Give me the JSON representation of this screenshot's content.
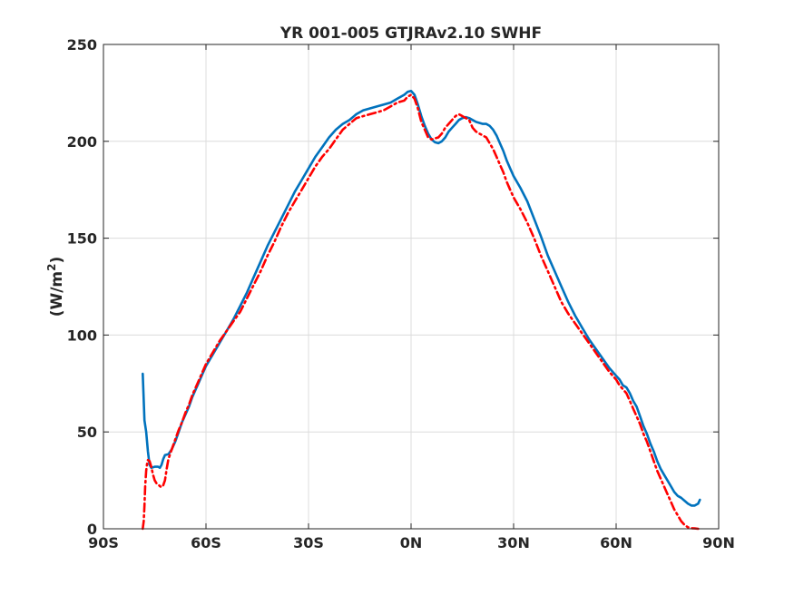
{
  "chart_data": {
    "type": "line",
    "title": "YR 001-005 GTJRAv2.10     SWHF",
    "xlabel": "",
    "ylabel_main": "(W/m",
    "ylabel_sup": "2",
    "ylabel_close": ")",
    "xlim": [
      -90,
      90
    ],
    "ylim": [
      0,
      250
    ],
    "grid": true,
    "x_ticks": [
      {
        "value": -90,
        "label": "90S"
      },
      {
        "value": -60,
        "label": "60S"
      },
      {
        "value": -30,
        "label": "30S"
      },
      {
        "value": 0,
        "label": "0N"
      },
      {
        "value": 30,
        "label": "30N"
      },
      {
        "value": 60,
        "label": "60N"
      },
      {
        "value": 90,
        "label": "90N"
      }
    ],
    "y_ticks": [
      {
        "value": 0,
        "label": "0"
      },
      {
        "value": 50,
        "label": "50"
      },
      {
        "value": 100,
        "label": "100"
      },
      {
        "value": 150,
        "label": "150"
      },
      {
        "value": 200,
        "label": "200"
      },
      {
        "value": 250,
        "label": "250"
      }
    ],
    "series": [
      {
        "color": "#0072bd",
        "dash": "solid",
        "points": [
          [
            -78.5,
            80
          ],
          [
            -78.3,
            70
          ],
          [
            -78,
            56
          ],
          [
            -77.5,
            50
          ],
          [
            -77,
            40
          ],
          [
            -76.5,
            33
          ],
          [
            -76,
            31.5
          ],
          [
            -75,
            32
          ],
          [
            -74,
            32
          ],
          [
            -73.5,
            31.5
          ],
          [
            -73,
            33
          ],
          [
            -72.5,
            36
          ],
          [
            -72,
            38
          ],
          [
            -71,
            38.5
          ],
          [
            -70,
            41
          ],
          [
            -69,
            45
          ],
          [
            -68,
            50
          ],
          [
            -67,
            55
          ],
          [
            -66,
            59
          ],
          [
            -65,
            63
          ],
          [
            -64,
            68
          ],
          [
            -63,
            72
          ],
          [
            -62,
            76
          ],
          [
            -61,
            80
          ],
          [
            -60,
            84
          ],
          [
            -58,
            90
          ],
          [
            -56,
            96
          ],
          [
            -54,
            102
          ],
          [
            -52,
            108
          ],
          [
            -50,
            115
          ],
          [
            -48,
            122
          ],
          [
            -46,
            130
          ],
          [
            -44,
            138
          ],
          [
            -42,
            146
          ],
          [
            -40,
            153
          ],
          [
            -38,
            160
          ],
          [
            -36,
            167
          ],
          [
            -34,
            174
          ],
          [
            -32,
            180
          ],
          [
            -30,
            186
          ],
          [
            -28,
            192
          ],
          [
            -26,
            197
          ],
          [
            -24,
            202
          ],
          [
            -22,
            206
          ],
          [
            -20,
            209
          ],
          [
            -18,
            211
          ],
          [
            -16,
            214
          ],
          [
            -14,
            216
          ],
          [
            -12,
            217
          ],
          [
            -10,
            218
          ],
          [
            -8,
            219
          ],
          [
            -6,
            220
          ],
          [
            -4,
            222
          ],
          [
            -2,
            224
          ],
          [
            -1,
            225.5
          ],
          [
            0,
            226
          ],
          [
            1,
            224
          ],
          [
            2,
            219
          ],
          [
            3,
            213
          ],
          [
            4,
            208
          ],
          [
            5,
            204
          ],
          [
            6,
            201
          ],
          [
            7,
            199.5
          ],
          [
            8,
            199
          ],
          [
            9,
            200
          ],
          [
            10,
            202
          ],
          [
            11,
            205
          ],
          [
            12,
            207
          ],
          [
            13,
            209
          ],
          [
            14,
            211
          ],
          [
            15,
            212
          ],
          [
            16,
            212.5
          ],
          [
            17,
            212
          ],
          [
            18,
            211
          ],
          [
            19,
            210
          ],
          [
            20,
            209.5
          ],
          [
            21,
            209
          ],
          [
            22,
            209
          ],
          [
            23,
            208
          ],
          [
            24,
            206
          ],
          [
            25,
            203
          ],
          [
            26,
            199
          ],
          [
            27,
            195
          ],
          [
            28,
            190
          ],
          [
            29,
            186
          ],
          [
            30,
            182
          ],
          [
            32,
            176
          ],
          [
            34,
            169
          ],
          [
            36,
            160
          ],
          [
            38,
            151
          ],
          [
            40,
            141
          ],
          [
            42,
            133
          ],
          [
            44,
            125
          ],
          [
            46,
            117
          ],
          [
            48,
            110
          ],
          [
            50,
            104
          ],
          [
            52,
            98
          ],
          [
            54,
            93
          ],
          [
            56,
            88
          ],
          [
            58,
            83
          ],
          [
            60,
            79
          ],
          [
            61,
            77
          ],
          [
            62,
            74
          ],
          [
            63,
            73
          ],
          [
            64,
            70
          ],
          [
            65,
            66
          ],
          [
            66,
            63
          ],
          [
            67,
            58
          ],
          [
            68,
            53
          ],
          [
            69,
            49
          ],
          [
            70,
            44
          ],
          [
            71,
            40
          ],
          [
            72,
            35
          ],
          [
            73,
            31
          ],
          [
            74,
            28
          ],
          [
            75,
            25
          ],
          [
            76,
            22
          ],
          [
            77,
            19
          ],
          [
            78,
            17
          ],
          [
            79,
            16
          ],
          [
            80,
            14.5
          ],
          [
            81,
            13
          ],
          [
            82,
            12
          ],
          [
            83,
            12
          ],
          [
            84,
            13
          ],
          [
            84.5,
            15
          ]
        ]
      },
      {
        "color": "#ff0000",
        "dash": "dashdot",
        "points": [
          [
            -78.5,
            0
          ],
          [
            -78.2,
            4
          ],
          [
            -78,
            12
          ],
          [
            -77.8,
            22
          ],
          [
            -77.5,
            30
          ],
          [
            -77.2,
            34
          ],
          [
            -77,
            35.5
          ],
          [
            -76.5,
            35
          ],
          [
            -76,
            32
          ],
          [
            -75.5,
            28
          ],
          [
            -75,
            25
          ],
          [
            -74.5,
            23.5
          ],
          [
            -74,
            23
          ],
          [
            -73.5,
            22
          ],
          [
            -73,
            21.5
          ],
          [
            -72.5,
            22.5
          ],
          [
            -72,
            25
          ],
          [
            -71.5,
            31
          ],
          [
            -71,
            36
          ],
          [
            -70,
            41
          ],
          [
            -69,
            46
          ],
          [
            -68,
            51
          ],
          [
            -67,
            55
          ],
          [
            -66,
            60
          ],
          [
            -65,
            64
          ],
          [
            -64,
            69
          ],
          [
            -63,
            73
          ],
          [
            -62,
            77
          ],
          [
            -61,
            81
          ],
          [
            -60,
            85
          ],
          [
            -58,
            91
          ],
          [
            -56,
            97
          ],
          [
            -54,
            102
          ],
          [
            -52,
            107
          ],
          [
            -50,
            112
          ],
          [
            -48,
            119
          ],
          [
            -46,
            126
          ],
          [
            -44,
            133
          ],
          [
            -42,
            141
          ],
          [
            -40,
            148
          ],
          [
            -38,
            156
          ],
          [
            -36,
            163
          ],
          [
            -34,
            169
          ],
          [
            -32,
            175
          ],
          [
            -30,
            181
          ],
          [
            -28,
            187
          ],
          [
            -26,
            192
          ],
          [
            -24,
            196
          ],
          [
            -22,
            201
          ],
          [
            -20,
            206
          ],
          [
            -18,
            209
          ],
          [
            -16,
            212
          ],
          [
            -14,
            213
          ],
          [
            -12,
            214
          ],
          [
            -10,
            215
          ],
          [
            -8,
            216
          ],
          [
            -6,
            218
          ],
          [
            -4,
            220
          ],
          [
            -2,
            221
          ],
          [
            -1,
            223
          ],
          [
            0,
            224
          ],
          [
            1,
            222
          ],
          [
            2,
            217
          ],
          [
            3,
            210
          ],
          [
            4,
            206
          ],
          [
            5,
            202
          ],
          [
            6,
            201
          ],
          [
            7,
            201.5
          ],
          [
            8,
            202
          ],
          [
            9,
            204
          ],
          [
            10,
            207
          ],
          [
            11,
            209
          ],
          [
            12,
            211
          ],
          [
            13,
            213
          ],
          [
            14,
            214
          ],
          [
            15,
            213
          ],
          [
            16,
            212
          ],
          [
            17,
            211
          ],
          [
            18,
            207
          ],
          [
            19,
            205
          ],
          [
            20,
            204
          ],
          [
            21,
            203
          ],
          [
            22,
            202
          ],
          [
            23,
            199
          ],
          [
            24,
            196
          ],
          [
            25,
            192
          ],
          [
            26,
            188
          ],
          [
            27,
            184
          ],
          [
            28,
            179
          ],
          [
            29,
            175
          ],
          [
            30,
            171
          ],
          [
            32,
            165
          ],
          [
            34,
            158
          ],
          [
            36,
            150
          ],
          [
            38,
            141
          ],
          [
            40,
            133
          ],
          [
            42,
            125
          ],
          [
            44,
            117
          ],
          [
            46,
            111
          ],
          [
            48,
            106
          ],
          [
            50,
            101
          ],
          [
            52,
            96
          ],
          [
            54,
            91
          ],
          [
            56,
            86
          ],
          [
            58,
            81
          ],
          [
            60,
            77
          ],
          [
            61,
            74
          ],
          [
            62,
            72
          ],
          [
            63,
            70
          ],
          [
            64,
            66
          ],
          [
            65,
            62
          ],
          [
            66,
            58
          ],
          [
            67,
            54
          ],
          [
            68,
            49
          ],
          [
            69,
            45
          ],
          [
            70,
            40
          ],
          [
            71,
            35
          ],
          [
            72,
            30
          ],
          [
            73,
            26
          ],
          [
            74,
            22
          ],
          [
            75,
            18
          ],
          [
            76,
            14
          ],
          [
            77,
            10
          ],
          [
            78,
            7
          ],
          [
            79,
            4
          ],
          [
            80,
            2
          ],
          [
            81,
            0.8
          ],
          [
            82,
            0.3
          ],
          [
            83,
            0.2
          ],
          [
            84,
            0
          ]
        ]
      }
    ]
  }
}
